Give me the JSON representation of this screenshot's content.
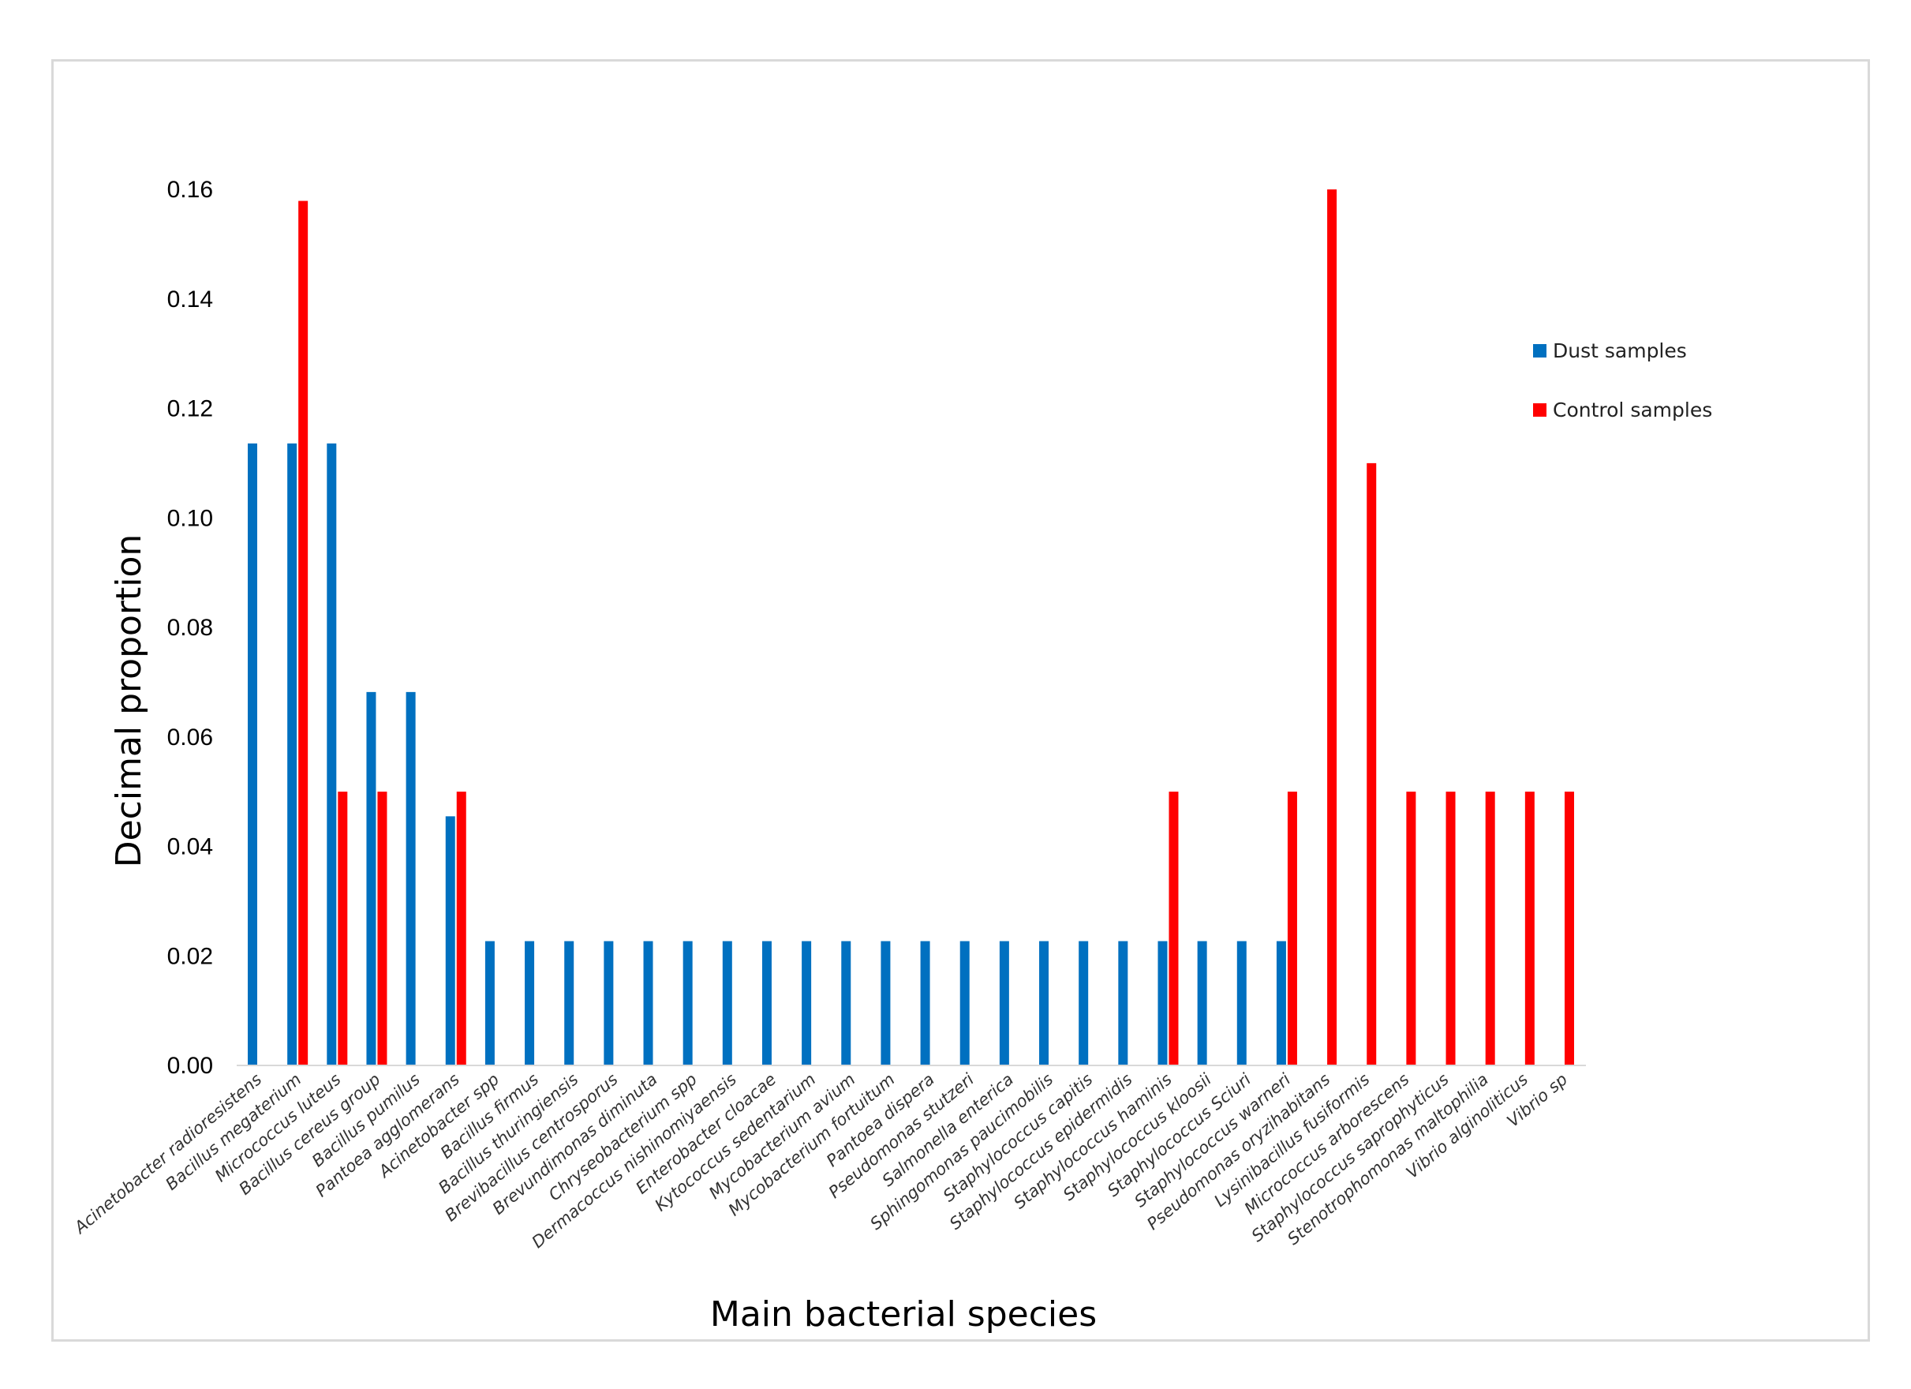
{
  "chart_data": {
    "type": "bar",
    "title": "",
    "xlabel": "Main bacterial species",
    "ylabel": "Decimal proportion",
    "ylim": [
      0,
      0.16
    ],
    "yticks": [
      "0.00",
      "0.02",
      "0.04",
      "0.06",
      "0.08",
      "0.10",
      "0.12",
      "0.14",
      "0.16"
    ],
    "legend_position": "right",
    "categories": [
      "Acinetobacter radioresistens",
      "Bacillus megaterium",
      "Micrococcus luteus",
      "Bacillus cereus group",
      "Bacillus pumilus",
      "Pantoea agglomerans",
      "Acinetobacter spp",
      "Bacillus firmus",
      "Bacillus thuringiensis",
      "Brevibacillus centrosporus",
      "Brevundimonas diminuta",
      "Chryseobacterium spp",
      "Dermacoccus nishinomiyaensis",
      "Enterobacter cloacae",
      "Kytococcus sedentarium",
      "Mycobacterium avium",
      "Mycobacterium fortuitum",
      "Pantoea dispera",
      "Pseudomonas stutzeri",
      "Salmonella enterica",
      "Sphingomonas paucimobilis",
      "Staphylococcus capitis",
      "Staphylococcus epidermidis",
      "Staphylococcus haminis",
      "Staphylococcus kloosii",
      "Staphylococcus Sciuri",
      "Staphylococcus warneri",
      "Pseudomonas oryzihabitans",
      "Lysinibacillus fusiformis",
      "Micrococcus arborescens",
      "Staphylococcus saprophyticus",
      "Stenotrophomonas maltophilia",
      "Vibrio alginoliticus",
      "Vibrio sp"
    ],
    "series": [
      {
        "name": "Dust samples",
        "color": "#0070c0",
        "values": [
          0.1136,
          0.1136,
          0.1136,
          0.0682,
          0.0682,
          0.0455,
          0.0227,
          0.0227,
          0.0227,
          0.0227,
          0.0227,
          0.0227,
          0.0227,
          0.0227,
          0.0227,
          0.0227,
          0.0227,
          0.0227,
          0.0227,
          0.0227,
          0.0227,
          0.0227,
          0.0227,
          0.0227,
          0.0227,
          0.0227,
          0.0227,
          0,
          0,
          0,
          0,
          0,
          0,
          0
        ]
      },
      {
        "name": "Control samples",
        "color": "#ff0000",
        "values": [
          0,
          0.1579,
          0.05,
          0.05,
          0,
          0.05,
          0,
          0,
          0,
          0,
          0,
          0,
          0,
          0,
          0,
          0,
          0,
          0,
          0,
          0,
          0,
          0,
          0,
          0.05,
          0,
          0,
          0.05,
          0.16,
          0.11,
          0.05,
          0.05,
          0.05,
          0.05,
          0.05
        ]
      }
    ]
  }
}
